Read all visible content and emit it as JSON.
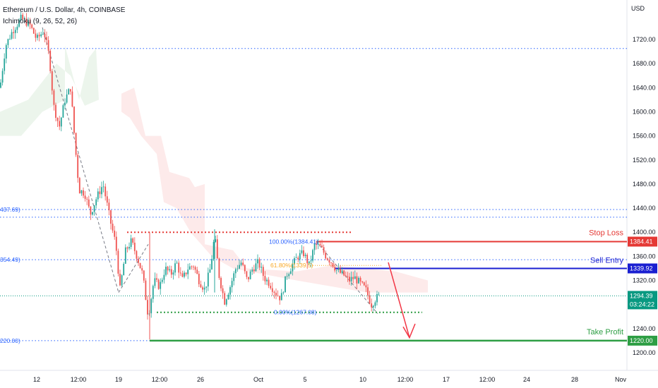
{
  "header": {
    "title": "Ethereum / U.S. Dollar, 4h, COINBASE",
    "indicator": "Ichimoku (9, 26, 52, 26)"
  },
  "price_axis": {
    "unit": "USD",
    "ticks": [
      "1720.00",
      "1680.00",
      "1640.00",
      "1600.00",
      "1560.00",
      "1520.00",
      "1480.00",
      "1440.00",
      "1400.00",
      "1360.00",
      "1320.00",
      "1240.00",
      "1200.00"
    ]
  },
  "time_axis": {
    "ticks": [
      "12",
      "12:00",
      "19",
      "12:00",
      "26",
      "Oct",
      "5",
      "10",
      "12:00",
      "17",
      "12:00",
      "24",
      "28",
      "Nov"
    ]
  },
  "colors": {
    "up": "#26a69a",
    "down": "#ef5350",
    "stop": "#e53935",
    "entry": "#1a1fd1",
    "profit": "#2e9e44",
    "level": "#2962ff",
    "current": "#089981"
  },
  "tags": {
    "stop_price": "1384.41",
    "entry_price": "1339.92",
    "last_price": "1294.39",
    "countdown": "03:24:22",
    "profit_price": "1220.00"
  },
  "annotations": {
    "stop_loss": "Stop Loss",
    "sell_entry": "Sell Entry",
    "take_profit": "Take Profit"
  },
  "left_levels": [
    "437.69)",
    "354.49)",
    "220.00)"
  ],
  "fib": {
    "high": "100.00%(1384.41)",
    "mid": "61.80%(1339.5)",
    "low": "0.00%(1267.08)"
  },
  "chart_data": {
    "type": "candlestick",
    "title": "Ethereum / U.S. Dollar, 4h, COINBASE",
    "y_unit": "USD",
    "ylim": [
      1185,
      1765
    ],
    "levels": {
      "stop_loss": 1384.41,
      "sell_entry": 1339.92,
      "take_profit": 1220.0,
      "last_price": 1294.39,
      "resistance_1": 1437.69,
      "resistance_2": 1354.49,
      "resistance_top": 1705,
      "resistance_mid": 1425,
      "support": 1267.08
    },
    "price_path": [
      [
        0,
        1640
      ],
      [
        8,
        1710
      ],
      [
        18,
        1735
      ],
      [
        30,
        1755
      ],
      [
        42,
        1745
      ],
      [
        52,
        1720
      ],
      [
        62,
        1735
      ],
      [
        70,
        1690
      ],
      [
        76,
        1610
      ],
      [
        84,
        1575
      ],
      [
        92,
        1620
      ],
      [
        100,
        1640
      ],
      [
        106,
        1550
      ],
      [
        112,
        1470
      ],
      [
        120,
        1465
      ],
      [
        128,
        1430
      ],
      [
        136,
        1455
      ],
      [
        146,
        1480
      ],
      [
        156,
        1420
      ],
      [
        164,
        1380
      ],
      [
        170,
        1305
      ],
      [
        178,
        1370
      ],
      [
        186,
        1385
      ],
      [
        194,
        1360
      ],
      [
        202,
        1330
      ],
      [
        210,
        1260
      ],
      [
        218,
        1320
      ],
      [
        226,
        1310
      ],
      [
        234,
        1340
      ],
      [
        242,
        1330
      ],
      [
        250,
        1350
      ],
      [
        258,
        1320
      ],
      [
        266,
        1340
      ],
      [
        274,
        1345
      ],
      [
        282,
        1320
      ],
      [
        290,
        1305
      ],
      [
        298,
        1340
      ],
      [
        304,
        1395
      ],
      [
        310,
        1330
      ],
      [
        318,
        1285
      ],
      [
        326,
        1310
      ],
      [
        334,
        1340
      ],
      [
        342,
        1350
      ],
      [
        350,
        1320
      ],
      [
        358,
        1340
      ],
      [
        366,
        1350
      ],
      [
        374,
        1325
      ],
      [
        382,
        1315
      ],
      [
        390,
        1300
      ],
      [
        398,
        1290
      ],
      [
        406,
        1330
      ],
      [
        414,
        1345
      ],
      [
        422,
        1360
      ],
      [
        430,
        1365
      ],
      [
        438,
        1345
      ],
      [
        446,
        1380
      ],
      [
        454,
        1375
      ],
      [
        462,
        1360
      ],
      [
        470,
        1350
      ],
      [
        478,
        1335
      ],
      [
        486,
        1330
      ],
      [
        494,
        1320
      ],
      [
        502,
        1325
      ],
      [
        510,
        1315
      ],
      [
        518,
        1305
      ],
      [
        526,
        1280
      ],
      [
        532,
        1290
      ],
      [
        538,
        1295
      ]
    ]
  }
}
